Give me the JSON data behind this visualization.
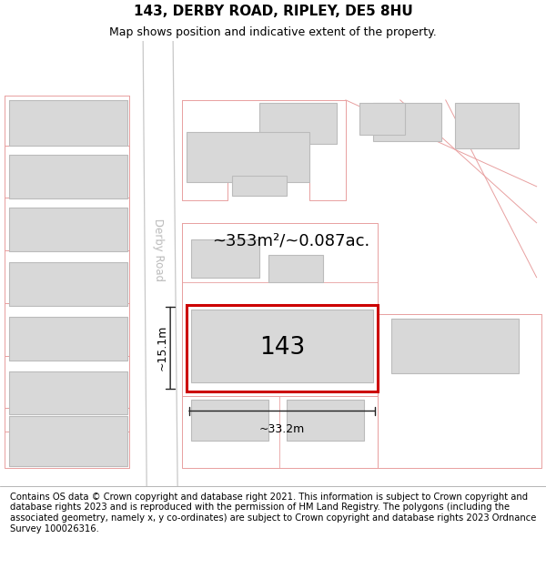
{
  "title": "143, DERBY ROAD, RIPLEY, DE5 8HU",
  "subtitle": "Map shows position and indicative extent of the property.",
  "footnote": "Contains OS data © Crown copyright and database right 2021. This information is subject to Crown copyright and database rights 2023 and is reproduced with the permission of HM Land Registry. The polygons (including the associated geometry, namely x, y co-ordinates) are subject to Crown copyright and database rights 2023 Ordnance Survey 100026316.",
  "area_text": "~353m²/~0.087ac.",
  "label_143": "143",
  "dim_width": "~33.2m",
  "dim_height": "~15.1m",
  "road_label": "Derby Road",
  "map_bg": "#f7f7f7",
  "highlight_color": "#cc0000",
  "building_fill": "#d8d8d8",
  "building_edge": "#bbbbbb",
  "plot_edge": "#e8a0a0",
  "road_fill": "#ffffff",
  "road_edge": "#cccccc",
  "title_fontsize": 11,
  "subtitle_fontsize": 9,
  "footnote_fontsize": 7.2
}
